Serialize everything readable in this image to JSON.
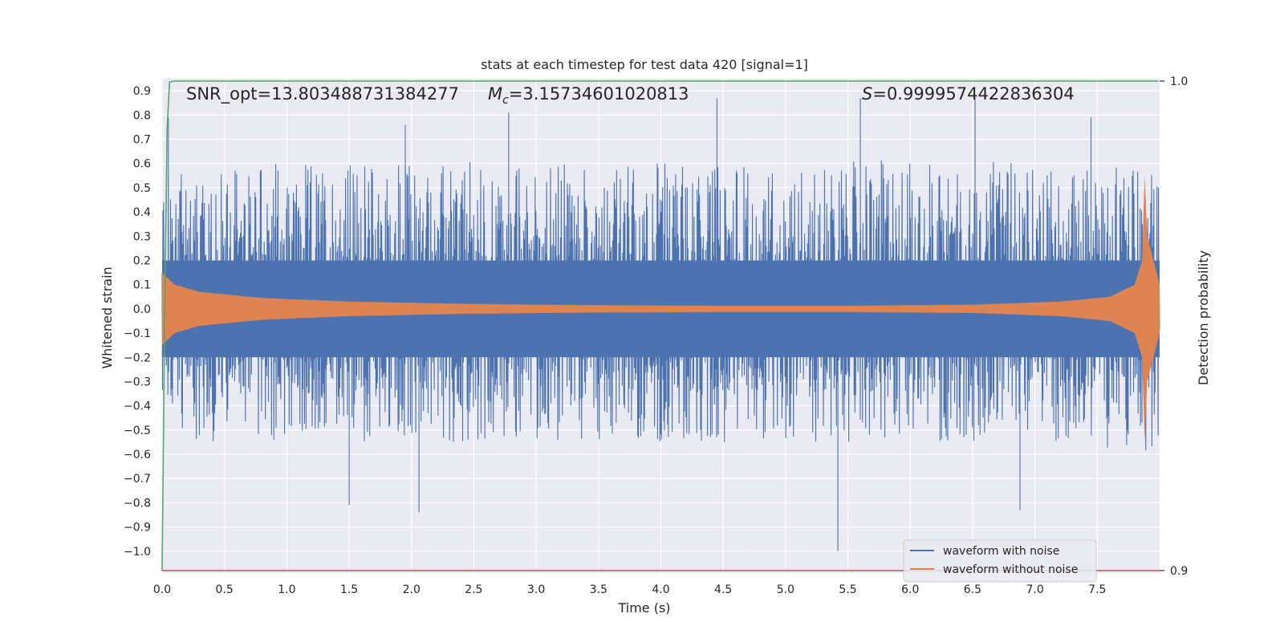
{
  "chart_data": {
    "type": "line",
    "title": "stats at each timestep for test data 420 [signal=1]",
    "xlabel": "Time (s)",
    "ylabel": "Whitened strain",
    "ylabel_right": "Detection probability",
    "xlim": [
      0.0,
      8.0
    ],
    "ylim": [
      -1.09,
      0.95
    ],
    "ylim_right": [
      0.8995,
      1.0005
    ],
    "x_ticks": [
      "0.0",
      "0.5",
      "1.0",
      "1.5",
      "2.0",
      "2.5",
      "3.0",
      "3.5",
      "4.0",
      "4.5",
      "5.0",
      "5.5",
      "6.0",
      "6.5",
      "7.0",
      "7.5"
    ],
    "y_ticks": [
      "0.9",
      "0.8",
      "0.7",
      "0.6",
      "0.5",
      "0.4",
      "0.3",
      "0.2",
      "0.1",
      "0.0",
      "−0.1",
      "−0.2",
      "−0.3",
      "−0.4",
      "−0.5",
      "−0.6",
      "−0.7",
      "−0.8",
      "−0.9",
      "−1.0"
    ],
    "y_right_ticks": [
      "1.0",
      "0.9"
    ],
    "annotations": {
      "snr": "SNR_opt=13.803488731384277",
      "mc_symbol": "M",
      "mc_sub": "c",
      "mc_value": "=3.15734601020813",
      "s_symbol": "S",
      "s_value": "=0.9999574422836304"
    },
    "legend": {
      "placement": "lower-right",
      "entries": [
        "waveform with noise",
        "waveform without noise"
      ]
    },
    "grid": true,
    "colors": {
      "background": "#eaeaf2",
      "noise": "#4c72b0",
      "clean": "#dd8452",
      "probability": "#55a868",
      "threshold": "#c44e52"
    },
    "series": [
      {
        "name": "waveform with noise",
        "description_points": {
          "envelope_pos": [
            [
              0.0,
              0.55
            ],
            [
              0.5,
              0.58
            ],
            [
              1.0,
              0.6
            ],
            [
              2.0,
              0.62
            ],
            [
              3.0,
              0.6
            ],
            [
              4.0,
              0.62
            ],
            [
              5.0,
              0.6
            ],
            [
              6.0,
              0.62
            ],
            [
              7.0,
              0.6
            ],
            [
              7.9,
              0.6
            ]
          ],
          "envelope_neg": [
            [
              0.0,
              -0.55
            ],
            [
              0.5,
              -0.55
            ],
            [
              1.0,
              -0.55
            ],
            [
              2.0,
              -0.55
            ],
            [
              3.0,
              -0.55
            ],
            [
              4.0,
              -0.55
            ],
            [
              5.0,
              -0.55
            ],
            [
              6.0,
              -0.55
            ],
            [
              7.0,
              -0.55
            ],
            [
              7.9,
              -0.6
            ]
          ],
          "spikes": [
            [
              0.05,
              0.79
            ],
            [
              1.5,
              -0.81
            ],
            [
              1.95,
              0.76
            ],
            [
              2.06,
              -0.84
            ],
            [
              2.78,
              0.81
            ],
            [
              4.45,
              0.87
            ],
            [
              5.42,
              -1.0
            ],
            [
              5.6,
              0.87
            ],
            [
              6.52,
              0.87
            ],
            [
              6.88,
              -0.83
            ],
            [
              7.45,
              0.79
            ]
          ]
        }
      },
      {
        "name": "waveform without noise",
        "envelope": [
          [
            0.0,
            0.15
          ],
          [
            0.1,
            0.1
          ],
          [
            0.3,
            0.07
          ],
          [
            0.8,
            0.045
          ],
          [
            1.5,
            0.03
          ],
          [
            2.5,
            0.02
          ],
          [
            3.5,
            0.015
          ],
          [
            4.5,
            0.013
          ],
          [
            5.5,
            0.013
          ],
          [
            6.5,
            0.017
          ],
          [
            7.2,
            0.03
          ],
          [
            7.6,
            0.05
          ],
          [
            7.8,
            0.1
          ],
          [
            7.86,
            0.2
          ],
          [
            7.88,
            0.55
          ],
          [
            7.9,
            0.3
          ],
          [
            8.0,
            0.1
          ]
        ]
      },
      {
        "name": "detection probability",
        "axis": "right",
        "x": [
          0.0,
          0.02,
          0.04,
          0.06,
          0.1,
          1.0,
          4.0,
          7.99
        ],
        "y": [
          0.9,
          0.95,
          0.99,
          0.9998,
          1.0,
          1.0,
          1.0,
          1.0
        ]
      },
      {
        "name": "threshold",
        "axis": "right",
        "x": [
          0.0,
          8.0
        ],
        "y": [
          0.9,
          0.9
        ]
      }
    ]
  }
}
